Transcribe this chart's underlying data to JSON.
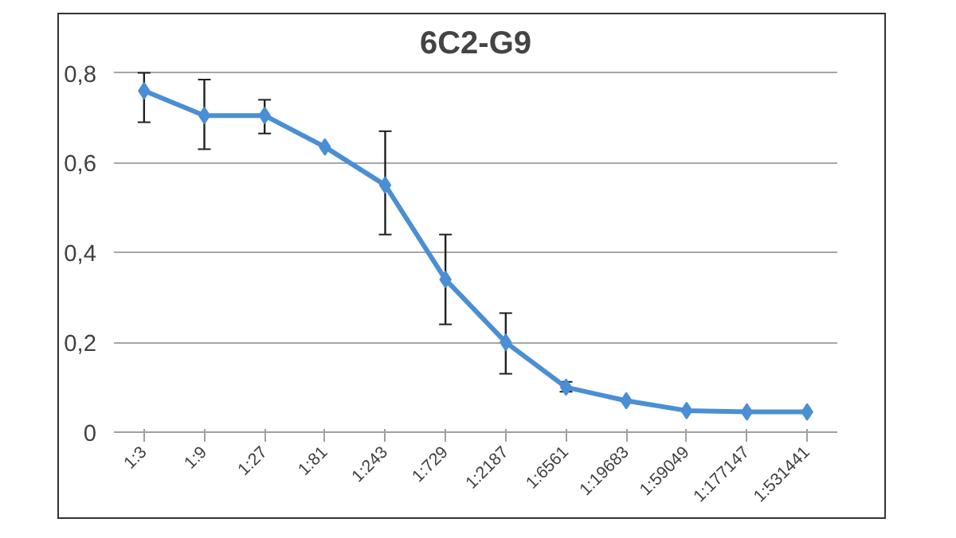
{
  "chart_data": {
    "type": "line",
    "title": "6C2-G9",
    "categories": [
      "1:3",
      "1:9",
      "1:27",
      "1:81",
      "1:243",
      "1:729",
      "1:2187",
      "1:6561",
      "1:19683",
      "1:59049",
      "1:177147",
      "1:531441"
    ],
    "series": [
      {
        "color": "#4a8fd4",
        "values": [
          0.76,
          0.705,
          0.705,
          0.635,
          0.55,
          0.34,
          0.2,
          0.1,
          0.07,
          0.048,
          0.045,
          0.045
        ],
        "errors": [
          [
            0.69,
            0.8
          ],
          [
            0.63,
            0.785
          ],
          [
            0.665,
            0.74
          ],
          null,
          [
            0.44,
            0.67
          ],
          [
            0.24,
            0.44
          ],
          [
            0.13,
            0.265
          ],
          [
            0.09,
            0.112
          ],
          null,
          null,
          null,
          null
        ]
      }
    ],
    "ylim": [
      0,
      0.8
    ],
    "yticks": [
      0,
      {
        "value": 0.2,
        "label": "0,2"
      },
      {
        "value": 0.4,
        "label": "0,4"
      },
      {
        "value": 0.6,
        "label": "0,6"
      },
      {
        "value": 0.8,
        "label": "0,8"
      }
    ],
    "grid": "y",
    "marker": "diamond"
  }
}
